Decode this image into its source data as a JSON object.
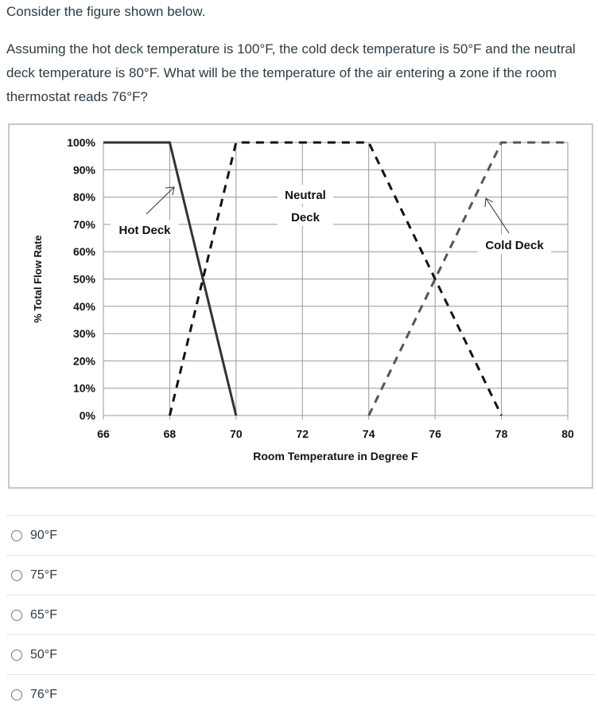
{
  "question": {
    "intro": "Consider the figure shown below.",
    "text": "Assuming the hot deck temperature is 100°F, the cold deck temperature is 50°F and the neutral deck temperature is 80°F. What will be the temperature of the air entering a zone if the room thermostat reads 76°F?"
  },
  "chart_data": {
    "type": "line",
    "xlabel": "Room Temperature in Degree F",
    "ylabel": "% Total Flow Rate",
    "xlim": [
      66,
      80
    ],
    "ylim": [
      0,
      100
    ],
    "x_ticks": [
      "66",
      "68",
      "70",
      "72",
      "74",
      "76",
      "78",
      "80"
    ],
    "y_ticks": [
      "0%",
      "10%",
      "20%",
      "30%",
      "40%",
      "50%",
      "60%",
      "70%",
      "80%",
      "90%",
      "100%"
    ],
    "grid": true,
    "series": [
      {
        "name": "Hot Deck",
        "style": "solid",
        "color": "#333333",
        "points": [
          [
            66,
            100
          ],
          [
            68,
            100
          ],
          [
            70,
            0
          ]
        ]
      },
      {
        "name": "Neutral Deck",
        "style": "dashed",
        "color": "#111111",
        "points": [
          [
            68,
            0
          ],
          [
            70,
            100
          ],
          [
            74,
            100
          ],
          [
            78,
            0
          ]
        ]
      },
      {
        "name": "Cold Deck",
        "style": "dashed",
        "color": "#555555",
        "points": [
          [
            74,
            0
          ],
          [
            78,
            100
          ],
          [
            80,
            100
          ]
        ]
      }
    ],
    "annotations": [
      "Hot Deck",
      "Neutral",
      "Deck",
      "Cold Deck"
    ]
  },
  "answers": [
    "90°F",
    "75°F",
    "65°F",
    "50°F",
    "76°F"
  ]
}
